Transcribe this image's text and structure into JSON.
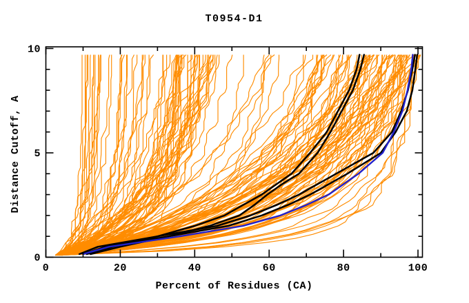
{
  "chart_data": {
    "type": "line",
    "title": "T0954-D1",
    "xlabel": "Percent of Residues (CA)",
    "ylabel": "Distance Cutoff, A",
    "xlim": [
      0,
      101.2
    ],
    "ylim": [
      0,
      10.08
    ],
    "grid": false,
    "legend": "none",
    "x_ticks": {
      "labeled": [
        0,
        20,
        40,
        60,
        80,
        100
      ],
      "minor_step": 10
    },
    "y_ticks": {
      "labeled": [
        0,
        5,
        10
      ],
      "minor_step": 1
    },
    "colors": {
      "background": "#ffffff",
      "frame": "#000000",
      "ensemble": "#ff8c00",
      "highlight": "#000000",
      "best_model": "#2222cc",
      "text": "#000000"
    },
    "highlighted_series": [
      {
        "name": "highlight-black-1",
        "color": "#000000",
        "points": [
          [
            0.15,
            9
          ],
          [
            0.5,
            14
          ],
          [
            1,
            30
          ],
          [
            1.5,
            40
          ],
          [
            2,
            48
          ],
          [
            2.5,
            53
          ],
          [
            3,
            58
          ],
          [
            3.5,
            62
          ],
          [
            4,
            66
          ],
          [
            5,
            71
          ],
          [
            6,
            75.5
          ],
          [
            7,
            78.5
          ],
          [
            8,
            81.5
          ],
          [
            9,
            83.5
          ],
          [
            9.7,
            84.3
          ]
        ]
      },
      {
        "name": "highlight-black-2",
        "color": "#000000",
        "points": [
          [
            0.15,
            10
          ],
          [
            0.5,
            16
          ],
          [
            1,
            33
          ],
          [
            1.5,
            44
          ],
          [
            2,
            52
          ],
          [
            2.5,
            56
          ],
          [
            3,
            59.5
          ],
          [
            3.5,
            63.5
          ],
          [
            4,
            68
          ],
          [
            5,
            73
          ],
          [
            6,
            76.5
          ],
          [
            7,
            79.5
          ],
          [
            8,
            82.5
          ],
          [
            9,
            84.5
          ],
          [
            9.7,
            85.5
          ]
        ]
      },
      {
        "name": "highlight-black-3",
        "color": "#000000",
        "points": [
          [
            0.15,
            11
          ],
          [
            0.5,
            18
          ],
          [
            1,
            30
          ],
          [
            1.5,
            46
          ],
          [
            2,
            55
          ],
          [
            2.5,
            62
          ],
          [
            3,
            68
          ],
          [
            4,
            78
          ],
          [
            5,
            88
          ],
          [
            6,
            93
          ],
          [
            7,
            95.5
          ],
          [
            8,
            97.3
          ],
          [
            9,
            98.5
          ],
          [
            9.7,
            99.2
          ]
        ]
      },
      {
        "name": "highlight-black-4",
        "color": "#000000",
        "points": [
          [
            0.15,
            12
          ],
          [
            0.5,
            20
          ],
          [
            1,
            33
          ],
          [
            1.5,
            49
          ],
          [
            2,
            58
          ],
          [
            2.5,
            65
          ],
          [
            3,
            71
          ],
          [
            4,
            81
          ],
          [
            5,
            90
          ],
          [
            6,
            94
          ],
          [
            7,
            97
          ],
          [
            8,
            98.5
          ],
          [
            9,
            99.3
          ],
          [
            9.7,
            99.8
          ]
        ]
      },
      {
        "name": "best-model-blue",
        "color": "#2222cc",
        "points": [
          [
            0.15,
            10
          ],
          [
            0.5,
            17
          ],
          [
            1,
            36
          ],
          [
            1.5,
            53
          ],
          [
            2,
            63
          ],
          [
            2.5,
            70
          ],
          [
            3,
            76
          ],
          [
            4,
            84
          ],
          [
            5,
            90.5
          ],
          [
            6,
            93.5
          ],
          [
            7,
            95.8
          ],
          [
            8,
            97.2
          ],
          [
            9,
            98.2
          ],
          [
            9.7,
            98.6
          ]
        ]
      }
    ],
    "ensemble": {
      "description": "orange background curves: percent of CA residues under each distance cutoff for all predicted models",
      "color": "#ff8c00",
      "count": 155,
      "seed": 1954,
      "cutoff_range": [
        0.1,
        9.7
      ],
      "start_percent": [
        2.5,
        4.5
      ],
      "groups": [
        {
          "weight": 0.08,
          "p_end": [
            8,
            15
          ],
          "k": [
            0.4,
            3
          ]
        },
        {
          "weight": 0.06,
          "p_end": [
            16,
            30
          ],
          "k": [
            0.6,
            4
          ]
        },
        {
          "weight": 0.2,
          "p_end": [
            31,
            47
          ],
          "k": [
            0.7,
            5
          ]
        },
        {
          "weight": 0.09,
          "p_end": [
            48,
            62
          ],
          "k": [
            1,
            6
          ]
        },
        {
          "weight": 0.03,
          "p_end": [
            63,
            71
          ],
          "k": [
            1.5,
            6
          ]
        },
        {
          "weight": 0.48,
          "p_end": [
            72,
            100
          ],
          "k": [
            1,
            7
          ]
        },
        {
          "weight": 0.06,
          "p_end": [
            95,
            100
          ],
          "k": [
            0.35,
            0.8
          ]
        }
      ]
    }
  }
}
